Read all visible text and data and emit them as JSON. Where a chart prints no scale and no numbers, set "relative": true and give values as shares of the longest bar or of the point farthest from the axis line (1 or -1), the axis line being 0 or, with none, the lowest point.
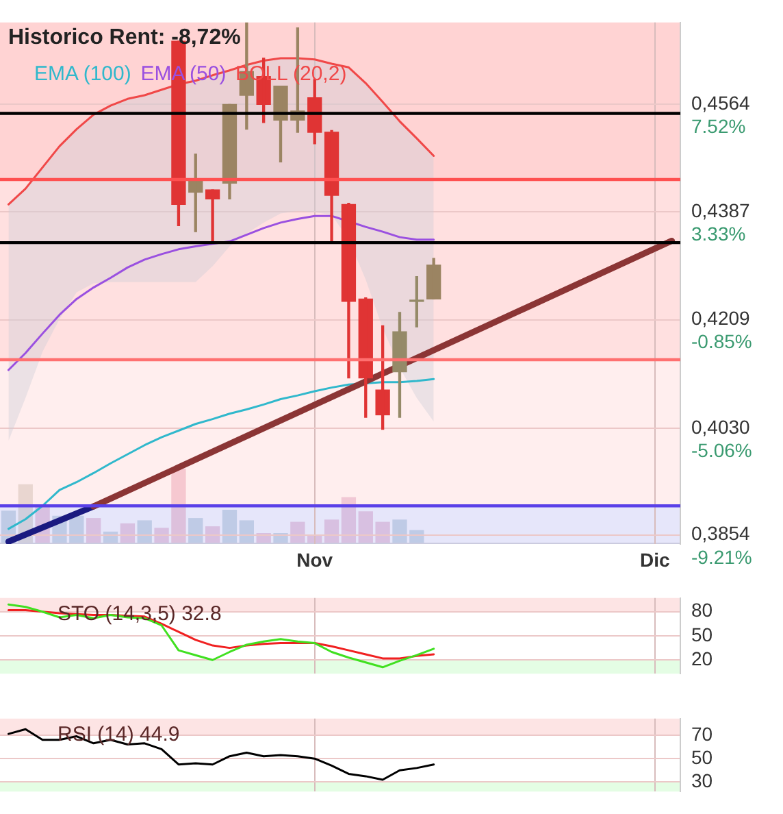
{
  "chart_data": [
    {
      "type": "candlestick",
      "title": "Historico Rent: -8,72%",
      "categories": [
        null,
        null,
        null,
        null,
        null,
        null,
        null,
        null,
        null,
        null,
        null,
        null,
        null,
        null,
        null,
        null,
        null,
        null,
        "Nov",
        null,
        null,
        null,
        null,
        null,
        null,
        null,
        null,
        null,
        null,
        null,
        null,
        null,
        null,
        null,
        null,
        null,
        null,
        null,
        "Dic",
        null
      ],
      "ohlc": [
        null,
        null,
        null,
        null,
        null,
        null,
        null,
        null,
        null,
        null,
        [
          0.4668,
          0.4668,
          0.4364,
          0.4399
        ],
        [
          0.4419,
          0.4482,
          0.4354,
          0.4438
        ],
        [
          0.4423,
          0.4423,
          0.4336,
          0.4408
        ],
        [
          0.4434,
          0.4564,
          0.4408,
          0.4564
        ],
        [
          0.4579,
          0.4699,
          0.4523,
          0.4618
        ],
        [
          0.461,
          0.464,
          0.4534,
          0.4564
        ],
        [
          0.4538,
          0.4594,
          0.4469,
          0.4594
        ],
        [
          0.4538,
          0.469,
          0.4518,
          0.4553
        ],
        [
          0.4575,
          0.4605,
          0.4499,
          0.4518
        ],
        [
          0.4518,
          0.4521,
          0.4338,
          0.4414
        ],
        [
          0.4399,
          0.4401,
          0.4113,
          0.4239
        ],
        [
          0.4243,
          0.4245,
          0.4048,
          0.4113
        ],
        [
          0.4093,
          0.4199,
          0.4028,
          0.4052
        ],
        [
          0.4123,
          0.4221,
          0.4048,
          0.4189
        ],
        [
          0.4239,
          0.428,
          0.4197,
          0.4239
        ],
        [
          0.4243,
          0.431,
          0.4243,
          0.4299
        ],
        null,
        null,
        null,
        null,
        null,
        null,
        null,
        null,
        null,
        null,
        null,
        null,
        null,
        null
      ],
      "colors": [
        null,
        null,
        null,
        null,
        null,
        null,
        null,
        null,
        null,
        null,
        "#e03434",
        "#9b8462",
        "#e03434",
        "#9b8462",
        "#9b8462",
        "#e03434",
        "#9b8462",
        "#9b8462",
        "#e03434",
        "#e03434",
        "#e03434",
        "#e03434",
        "#e03434",
        "#958a68",
        "#958a68",
        "#9b8462",
        null,
        null,
        null,
        null,
        null,
        null,
        null,
        null,
        null,
        null,
        null,
        null,
        null,
        null
      ],
      "series": [
        {
          "type": "line",
          "name": "EMA (100)",
          "color": "#30b8cc",
          "values": [
            0.3864,
            0.388,
            0.3902,
            0.3928,
            0.3941,
            0.3956,
            0.3972,
            0.3987,
            0.4002,
            0.4015,
            0.4026,
            0.4037,
            0.4045,
            0.4054,
            0.4061,
            0.4069,
            0.4078,
            0.4084,
            0.4091,
            0.4097,
            0.4102,
            0.4104,
            0.4106,
            0.4106,
            0.4108,
            0.4111,
            null,
            null,
            null,
            null,
            null,
            null,
            null,
            null,
            null,
            null,
            null,
            null,
            null,
            null
          ]
        },
        {
          "type": "line",
          "name": "EMA (50)",
          "color": "#9a50e0",
          "values": [
            0.4126,
            0.4154,
            0.4186,
            0.4217,
            0.4243,
            0.4262,
            0.4278,
            0.4295,
            0.4308,
            0.4317,
            0.4325,
            0.433,
            0.4334,
            0.4338,
            0.4349,
            0.436,
            0.4369,
            0.4375,
            0.438,
            0.438,
            null,
            0.4362,
            0.4354,
            0.4345,
            0.4341,
            0.4341,
            null,
            null,
            null,
            null,
            null,
            null,
            null,
            null,
            null,
            null,
            null,
            null,
            null,
            null
          ]
        },
        {
          "type": "line",
          "name": "BOLL (20,2)",
          "color": "#f04848",
          "values": [
            0.4399,
            0.4425,
            0.446,
            0.4495,
            0.4523,
            0.4547,
            0.4562,
            0.4573,
            0.4579,
            0.4588,
            0.4597,
            0.4603,
            0.4612,
            0.462,
            0.4629,
            0.4636,
            0.464,
            0.464,
            0.4638,
            0.4631,
            0.4625,
            0.4599,
            0.4568,
            0.4536,
            0.4508,
            0.4479,
            null,
            null,
            null,
            null,
            null,
            null,
            null,
            null,
            null,
            null,
            null,
            null,
            null,
            null
          ],
          "upper": [
            0.4399,
            0.4425,
            0.446,
            0.4495,
            0.4523,
            0.4547,
            0.4562,
            0.4573,
            0.4579,
            0.4588,
            0.4597,
            0.4603,
            0.4612,
            0.462,
            0.4629,
            0.4636,
            0.464,
            0.464,
            0.4638,
            0.4631,
            0.4625,
            0.4599,
            0.4568,
            0.4536,
            0.4508,
            0.4479,
            null,
            null,
            null,
            null,
            null,
            null,
            null,
            null,
            null,
            null,
            null,
            null,
            null,
            null
          ],
          "lower": [
            0.4009,
            0.408,
            0.4156,
            0.421,
            0.4254,
            0.4269,
            0.4271,
            0.4271,
            0.4271,
            0.4271,
            0.4271,
            0.4271,
            0.4297,
            0.433,
            0.4351,
            0.4369,
            0.4384,
            0.4388,
            0.4386,
            0.4382,
            0.4341,
            0.4275,
            0.4195,
            0.413,
            0.408,
            0.4041,
            null,
            null,
            null,
            null,
            null,
            null,
            null,
            null,
            null,
            null,
            null,
            null,
            null,
            null
          ]
        },
        {
          "type": "line",
          "color": "#8b3535",
          "values": [
            null,
            null,
            null,
            null,
            null,
            0.3901,
            null,
            null,
            null,
            null,
            null,
            null,
            null,
            null,
            null,
            null,
            null,
            null,
            null,
            null,
            null,
            null,
            null,
            null,
            null,
            null,
            null,
            null,
            null,
            null,
            null,
            null,
            null,
            null,
            null,
            null,
            null,
            null,
            null,
            0.4339
          ]
        },
        {
          "type": "line",
          "color": "#1a1a80",
          "values": [
            0.3843,
            null,
            null,
            null,
            null,
            0.3901,
            null,
            null,
            null,
            null,
            null,
            null,
            null,
            null,
            null,
            null,
            null,
            null,
            null,
            null,
            null,
            null,
            null,
            null,
            null,
            null,
            null,
            null,
            null,
            null,
            null,
            null,
            null,
            null,
            null,
            null,
            null,
            null,
            null,
            null
          ]
        }
      ],
      "ref_lines": [
        {
          "axis": "y",
          "value": 0.4549,
          "color": "#000000"
        },
        {
          "axis": "y",
          "value": 0.4336,
          "color": "#000000"
        },
        {
          "axis": "y",
          "value": 0.444,
          "color": "#ff5050"
        },
        {
          "axis": "y",
          "value": 0.4143,
          "color": "#ff7070"
        },
        {
          "axis": "y",
          "value": 0.3902,
          "color": "#5a40e8"
        }
      ],
      "bands": [
        {
          "axis": "y",
          "from": 0.444,
          "to": 0.4699,
          "color": "#ffb6b6"
        },
        {
          "axis": "y",
          "from": 0.4143,
          "to": 0.444,
          "color": "#ffcbcb"
        },
        {
          "axis": "y",
          "from": 0.3902,
          "to": 0.4143,
          "color": "#ffe3e3"
        },
        {
          "axis": "y",
          "from": 0.3839,
          "to": 0.3902,
          "color": "#d5d5f7"
        }
      ],
      "ylim": [
        0.3839,
        0.4699
      ],
      "yticks": [
        {
          "value": 0.3854,
          "label": "0,3854"
        },
        {
          "value": 0.403,
          "label": "0,4030"
        },
        {
          "value": 0.4209,
          "label": "0,4209"
        },
        {
          "value": 0.4387,
          "label": "0,4387"
        },
        {
          "value": 0.4564,
          "label": "0,4564"
        }
      ],
      "y2lim": [
        -9.56,
        10.7
      ],
      "y2ticks": [
        {
          "value": -9.21,
          "label": "-9.21%"
        },
        {
          "value": -5.06,
          "label": "-5.06%"
        },
        {
          "value": -0.85,
          "label": "-0.85%"
        },
        {
          "value": 3.33,
          "label": "3.33%"
        },
        {
          "value": 7.52,
          "label": "7.52%"
        }
      ],
      "grid": true,
      "legend": "top left"
    },
    {
      "type": "bar",
      "relative": true,
      "categories": [
        null,
        null,
        null,
        null,
        null,
        null,
        null,
        null,
        null,
        null,
        null,
        null,
        null,
        null,
        null,
        null,
        null,
        null,
        null,
        null,
        null,
        null,
        null,
        null,
        null,
        null,
        null,
        null,
        null,
        null,
        null,
        null,
        null,
        null,
        null,
        null,
        null,
        null,
        null,
        null
      ],
      "values": [
        0.44,
        0.79,
        0.49,
        0.37,
        0.37,
        0.34,
        0.16,
        0.27,
        0.31,
        0.21,
        1,
        0.34,
        0.23,
        0.45,
        0.31,
        0.14,
        0.14,
        0.29,
        0.12,
        0.32,
        0.62,
        0.43,
        0.29,
        0.32,
        0.18,
        0.01,
        null,
        null,
        null,
        null,
        null,
        null,
        null,
        null,
        null,
        null,
        null,
        null,
        null,
        null
      ],
      "colors": [
        "#9fbccc",
        "#c8c4b4",
        "#dca0c0",
        "#9fbccc",
        "#9fbccc",
        "#dca0c0",
        "#9fbccc",
        "#dca0c0",
        "#9fbccc",
        "#dca0c0",
        "#e8a0b4",
        "#9fbccc",
        "#dca0c0",
        "#9fbccc",
        "#9fbccc",
        "#dca0c0",
        "#9fbccc",
        "#dca0c0",
        "#dca0c0",
        "#dca0c0",
        "#dca0c0",
        "#dca0c0",
        "#dca0c0",
        "#9fbccc",
        "#9fbccc",
        "#9fbccc",
        null,
        null,
        null,
        null,
        null,
        null,
        null,
        null,
        null,
        null,
        null,
        null,
        null,
        null
      ],
      "tick_labels": false
    },
    {
      "type": "line",
      "title": "STO (14,3,5) 32.8",
      "categories": [
        null,
        null,
        null,
        null,
        null,
        null,
        null,
        null,
        null,
        null,
        null,
        null,
        null,
        null,
        null,
        null,
        null,
        null,
        null,
        null,
        null,
        null,
        null,
        null,
        null,
        null,
        null,
        null,
        null,
        null,
        null,
        null,
        null,
        null,
        null,
        null,
        null,
        null,
        null,
        null
      ],
      "series": [
        {
          "color": "#40e020",
          "values": [
            89,
            86,
            80,
            73,
            76,
            72,
            76,
            73,
            72,
            63,
            32,
            26,
            20,
            30,
            39,
            43,
            46,
            43,
            41,
            30,
            23,
            17,
            11,
            19,
            26,
            34,
            null,
            null,
            null,
            null,
            null,
            null,
            null,
            null,
            null,
            null,
            null,
            null,
            null,
            null
          ]
        },
        {
          "color": "#f02020",
          "values": [
            82,
            82,
            80,
            78,
            77,
            76,
            76,
            75,
            74,
            65,
            55,
            45,
            38,
            35,
            38,
            40,
            41,
            41,
            41,
            37,
            32,
            27,
            22,
            22,
            25,
            27,
            null,
            null,
            null,
            null,
            null,
            null,
            null,
            null,
            null,
            null,
            null,
            null,
            null,
            null
          ]
        }
      ],
      "bands": [
        {
          "axis": "y",
          "from": 80,
          "to": 97,
          "color": "#fcd2d2"
        },
        {
          "axis": "y",
          "from": 3,
          "to": 20,
          "color": "#d2fcd2"
        }
      ],
      "ylim": [
        3,
        97
      ],
      "yticks": [
        20,
        50,
        80
      ],
      "grid": true,
      "tick_labels": "y"
    },
    {
      "type": "line",
      "title": "RSI (14) 44.9",
      "categories": [
        null,
        null,
        null,
        null,
        null,
        null,
        null,
        null,
        null,
        null,
        null,
        null,
        null,
        null,
        null,
        null,
        null,
        null,
        null,
        null,
        null,
        null,
        null,
        null,
        null,
        null,
        null,
        null,
        null,
        null,
        null,
        null,
        null,
        null,
        null,
        null,
        null,
        null,
        null,
        null
      ],
      "series": [
        {
          "color": "#000000",
          "values": [
            71,
            75,
            66,
            66,
            69,
            63,
            66,
            62,
            63,
            58,
            45,
            46,
            45,
            52,
            55,
            52,
            53,
            52,
            50,
            44,
            37,
            35,
            32,
            40,
            42,
            45,
            null,
            null,
            null,
            null,
            null,
            null,
            null,
            null,
            null,
            null,
            null,
            null,
            null,
            null
          ]
        }
      ],
      "bands": [
        {
          "axis": "y",
          "from": 70,
          "to": 84,
          "color": "#fcd2d2"
        },
        {
          "axis": "y",
          "from": 22,
          "to": 30,
          "color": "#d2fcd2"
        }
      ],
      "ylim": [
        22,
        84
      ],
      "yticks": [
        30,
        50,
        70
      ],
      "grid": true,
      "tick_labels": "y"
    }
  ]
}
